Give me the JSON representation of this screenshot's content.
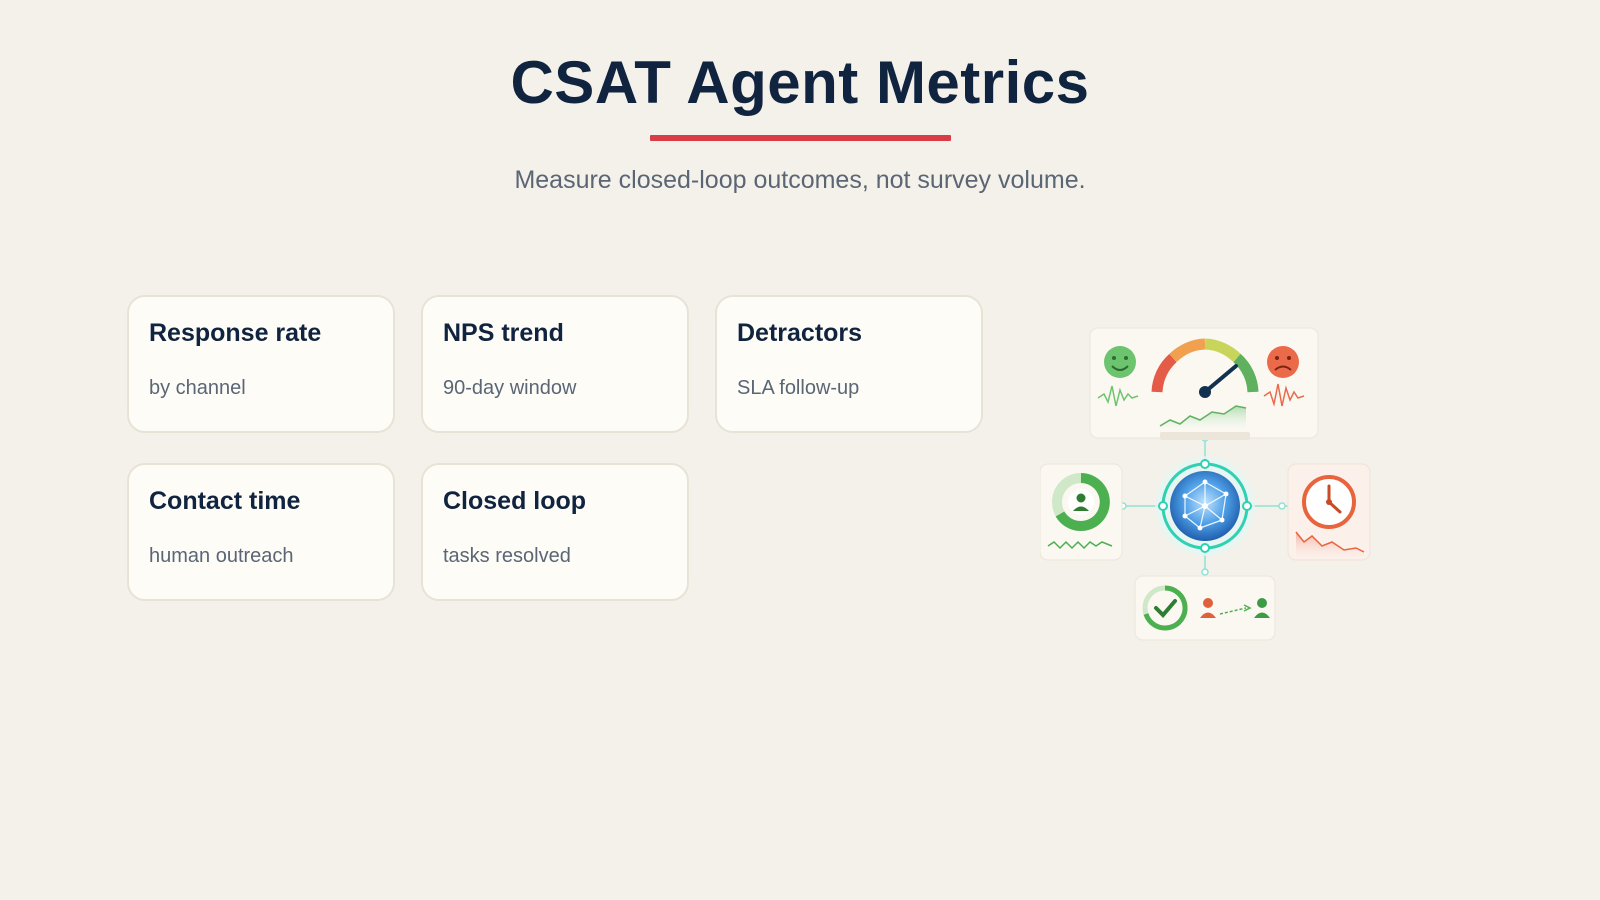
{
  "header": {
    "title": "CSAT Agent Metrics",
    "subtitle": "Measure closed-loop outcomes, not survey volume."
  },
  "cards": [
    {
      "title": "Response rate",
      "subtitle": "by channel"
    },
    {
      "title": "NPS trend",
      "subtitle": "90-day window"
    },
    {
      "title": "Detractors",
      "subtitle": "SLA follow-up"
    },
    {
      "title": "Contact time",
      "subtitle": "human outreach"
    },
    {
      "title": "Closed loop",
      "subtitle": "tasks resolved"
    }
  ],
  "illustration": {
    "icons": [
      "smile-icon",
      "gauge-icon",
      "frown-icon",
      "donut-user-icon",
      "network-globe-icon",
      "clock-icon",
      "check-circle-icon",
      "handoff-users-icon"
    ],
    "colors": {
      "accent": "#d83c46",
      "title": "#10233f",
      "green": "#4caf50",
      "orange": "#e8643c",
      "teal": "#2fd1b5",
      "blue": "#2f7fd1"
    }
  }
}
